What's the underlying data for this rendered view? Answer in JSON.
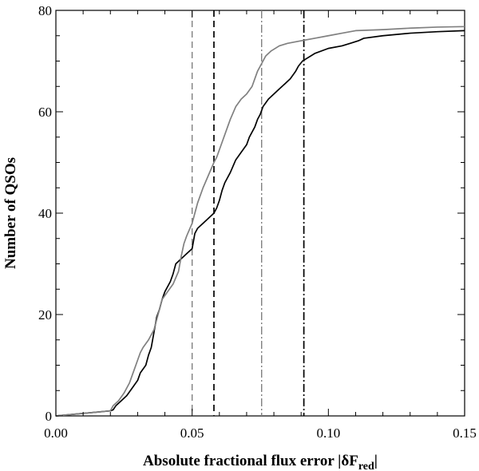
{
  "chart_data": {
    "type": "line",
    "xlabel": "Absolute fractional flux error |δF",
    "xlabel_subscript": "red",
    "xlabel_suffix": "|",
    "ylabel": "Number of QSOs",
    "xlim": [
      0.0,
      0.15
    ],
    "ylim": [
      0,
      80
    ],
    "x_ticks": [
      0.0,
      0.05,
      0.1,
      0.15
    ],
    "x_tick_labels": [
      "0.00",
      "0.05",
      "0.10",
      "0.15"
    ],
    "y_ticks": [
      0,
      20,
      40,
      60,
      80
    ],
    "y_tick_labels": [
      "0",
      "20",
      "40",
      "60",
      "80"
    ],
    "grid": false,
    "series": [
      {
        "color": "#000000",
        "width": 1.7,
        "points": [
          [
            0.0,
            0
          ],
          [
            0.02,
            1
          ],
          [
            0.021,
            1.2
          ],
          [
            0.022,
            2.0
          ],
          [
            0.024,
            3.0
          ],
          [
            0.026,
            4.0
          ],
          [
            0.028,
            5.5
          ],
          [
            0.03,
            7.0
          ],
          [
            0.031,
            8.5
          ],
          [
            0.033,
            10.0
          ],
          [
            0.034,
            12.0
          ],
          [
            0.035,
            13.5
          ],
          [
            0.036,
            16.5
          ],
          [
            0.037,
            19.5
          ],
          [
            0.038,
            21.0
          ],
          [
            0.039,
            23.0
          ],
          [
            0.04,
            24.5
          ],
          [
            0.042,
            26.5
          ],
          [
            0.043,
            28.0
          ],
          [
            0.044,
            30.0
          ],
          [
            0.046,
            31.0
          ],
          [
            0.048,
            32.0
          ],
          [
            0.05,
            33.0
          ],
          [
            0.0505,
            34.5
          ],
          [
            0.051,
            36.0
          ],
          [
            0.052,
            37.0
          ],
          [
            0.054,
            38.0
          ],
          [
            0.056,
            39.0
          ],
          [
            0.058,
            40.0
          ],
          [
            0.059,
            41.0
          ],
          [
            0.06,
            42.5
          ],
          [
            0.061,
            44.5
          ],
          [
            0.062,
            46.0
          ],
          [
            0.064,
            48.0
          ],
          [
            0.066,
            50.5
          ],
          [
            0.068,
            52.0
          ],
          [
            0.07,
            53.5
          ],
          [
            0.071,
            55.0
          ],
          [
            0.073,
            57.0
          ],
          [
            0.074,
            58.5
          ],
          [
            0.075,
            59.5
          ],
          [
            0.076,
            61.0
          ],
          [
            0.078,
            62.5
          ],
          [
            0.08,
            63.5
          ],
          [
            0.082,
            64.5
          ],
          [
            0.084,
            65.5
          ],
          [
            0.086,
            66.5
          ],
          [
            0.088,
            68.0
          ],
          [
            0.089,
            69.0
          ],
          [
            0.0905,
            70.0
          ],
          [
            0.092,
            70.5
          ],
          [
            0.095,
            71.5
          ],
          [
            0.1,
            72.5
          ],
          [
            0.105,
            73.0
          ],
          [
            0.108,
            73.5
          ],
          [
            0.111,
            74.0
          ],
          [
            0.113,
            74.5
          ],
          [
            0.12,
            75.0
          ],
          [
            0.13,
            75.5
          ],
          [
            0.14,
            75.8
          ],
          [
            0.15,
            76.0
          ]
        ]
      },
      {
        "color": "#808080",
        "width": 1.7,
        "points": [
          [
            0.0,
            0
          ],
          [
            0.02,
            1
          ],
          [
            0.021,
            2.0
          ],
          [
            0.023,
            3.0
          ],
          [
            0.025,
            4.5
          ],
          [
            0.027,
            6.5
          ],
          [
            0.028,
            8.0
          ],
          [
            0.029,
            9.5
          ],
          [
            0.03,
            11.0
          ],
          [
            0.031,
            12.5
          ],
          [
            0.032,
            13.5
          ],
          [
            0.034,
            15.0
          ],
          [
            0.036,
            17.0
          ],
          [
            0.037,
            19.0
          ],
          [
            0.038,
            21.0
          ],
          [
            0.039,
            23.0
          ],
          [
            0.041,
            24.5
          ],
          [
            0.043,
            26.0
          ],
          [
            0.045,
            28.5
          ],
          [
            0.046,
            31.5
          ],
          [
            0.047,
            34.0
          ],
          [
            0.048,
            35.5
          ],
          [
            0.05,
            38.0
          ],
          [
            0.051,
            40.0
          ],
          [
            0.052,
            42.0
          ],
          [
            0.054,
            45.0
          ],
          [
            0.056,
            47.5
          ],
          [
            0.058,
            50.0
          ],
          [
            0.059,
            51.0
          ],
          [
            0.06,
            52.5
          ],
          [
            0.061,
            54.0
          ],
          [
            0.063,
            57.0
          ],
          [
            0.064,
            58.5
          ],
          [
            0.066,
            61.0
          ],
          [
            0.068,
            62.5
          ],
          [
            0.07,
            63.5
          ],
          [
            0.072,
            65.0
          ],
          [
            0.073,
            66.5
          ],
          [
            0.074,
            68.0
          ],
          [
            0.075,
            69.0
          ],
          [
            0.076,
            70.0
          ],
          [
            0.077,
            71.0
          ],
          [
            0.079,
            72.0
          ],
          [
            0.082,
            73.0
          ],
          [
            0.085,
            73.5
          ],
          [
            0.09,
            74.0
          ],
          [
            0.095,
            74.5
          ],
          [
            0.1,
            75.0
          ],
          [
            0.105,
            75.5
          ],
          [
            0.11,
            76.0
          ],
          [
            0.12,
            76.2
          ],
          [
            0.13,
            76.5
          ],
          [
            0.14,
            76.7
          ],
          [
            0.15,
            76.8
          ]
        ]
      }
    ],
    "vertical_lines": [
      {
        "x": 0.05,
        "color": "#808080",
        "dash": "8,5",
        "width": 1.4
      },
      {
        "x": 0.058,
        "color": "#000000",
        "dash": "8,5",
        "width": 1.7
      },
      {
        "x": 0.0755,
        "color": "#808080",
        "dash": "10,3,2,3",
        "width": 1.4
      },
      {
        "x": 0.091,
        "color": "#000000",
        "dash": "10,3,2,3",
        "width": 1.7
      }
    ]
  }
}
